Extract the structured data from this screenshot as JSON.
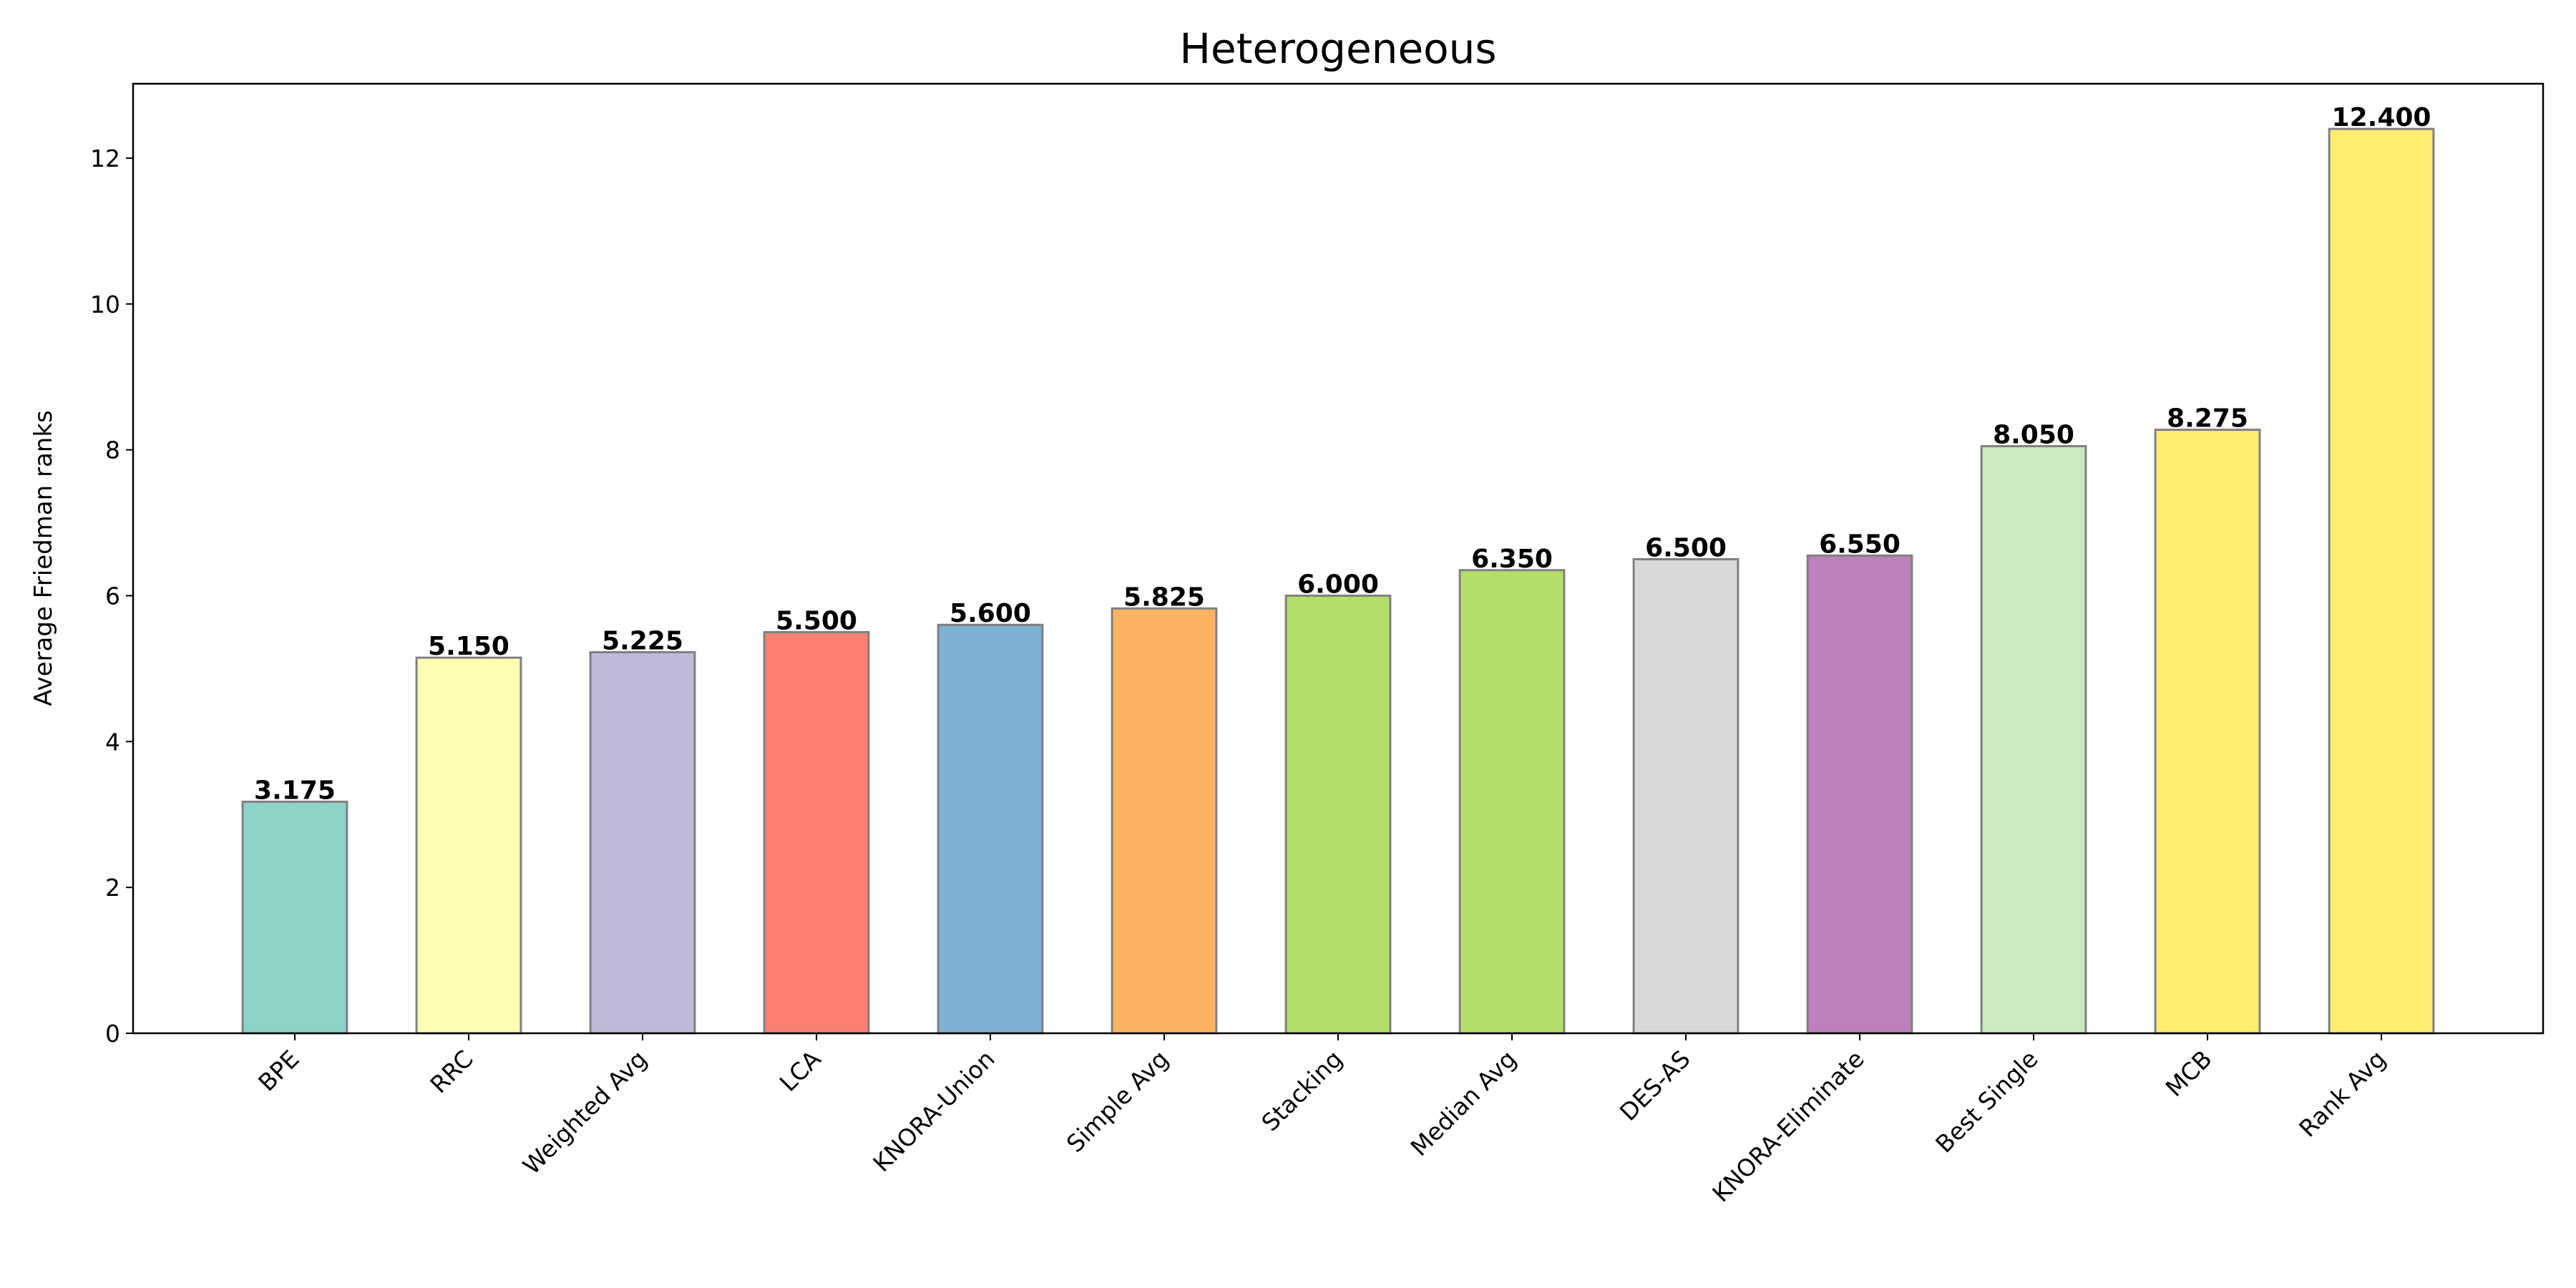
{
  "chart_data": {
    "type": "bar",
    "title": "Heterogeneous",
    "xlabel": "",
    "ylabel": "Average Friedman ranks",
    "categories": [
      "BPE",
      "RRC",
      "Weighted Avg",
      "LCA",
      "KNORA-Union",
      "Simple Avg",
      "Stacking",
      "Median Avg",
      "DES-AS",
      "KNORA-Eliminate",
      "Best Single",
      "MCB",
      "Rank Avg"
    ],
    "values": [
      3.175,
      5.15,
      5.225,
      5.5,
      5.6,
      5.825,
      6.0,
      6.35,
      6.5,
      6.55,
      8.05,
      8.275,
      12.4
    ],
    "value_labels": [
      "3.175",
      "5.150",
      "5.225",
      "5.500",
      "5.600",
      "5.825",
      "6.000",
      "6.350",
      "6.500",
      "6.550",
      "8.050",
      "8.275",
      "12.400"
    ],
    "colors": [
      "#8dd3c7",
      "#ffffb3",
      "#bebada",
      "#fb8072",
      "#80b1d3",
      "#fdb462",
      "#b3de69",
      "#b3de69",
      "#d9d9d9",
      "#bc80bd",
      "#ccebc5",
      "#ffed6f",
      "#ffed6f"
    ],
    "edge_color": "#808080",
    "ylim": [
      0,
      13.02
    ],
    "yticks": [
      0,
      2,
      4,
      6,
      8,
      10,
      12
    ],
    "grid": false,
    "legend": "none"
  }
}
